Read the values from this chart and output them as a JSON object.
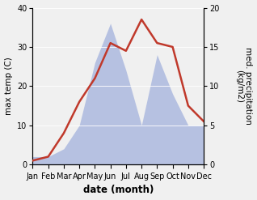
{
  "months": [
    "Jan",
    "Feb",
    "Mar",
    "Apr",
    "May",
    "Jun",
    "Jul",
    "Aug",
    "Sep",
    "Oct",
    "Nov",
    "Dec"
  ],
  "temperature": [
    1,
    2,
    8,
    16,
    22,
    31,
    29,
    37,
    31,
    30,
    15,
    11
  ],
  "precipitation": [
    1,
    1,
    2,
    5,
    13,
    18,
    12,
    5,
    14,
    9,
    5,
    5
  ],
  "temp_color": "#c0392b",
  "precip_fill_color": "#b0bce0",
  "ylabel_left": "max temp (C)",
  "ylabel_right": "med. precipitation\n(kg/m2)",
  "xlabel": "date (month)",
  "ylim_left": [
    0,
    40
  ],
  "ylim_right": [
    0,
    20
  ],
  "yticks_left": [
    0,
    10,
    20,
    30,
    40
  ],
  "yticks_right": [
    0,
    5,
    10,
    15,
    20
  ],
  "bg_color": "#f0f0f0",
  "label_fontsize": 7.5,
  "tick_fontsize": 7,
  "xlabel_fontsize": 8.5
}
